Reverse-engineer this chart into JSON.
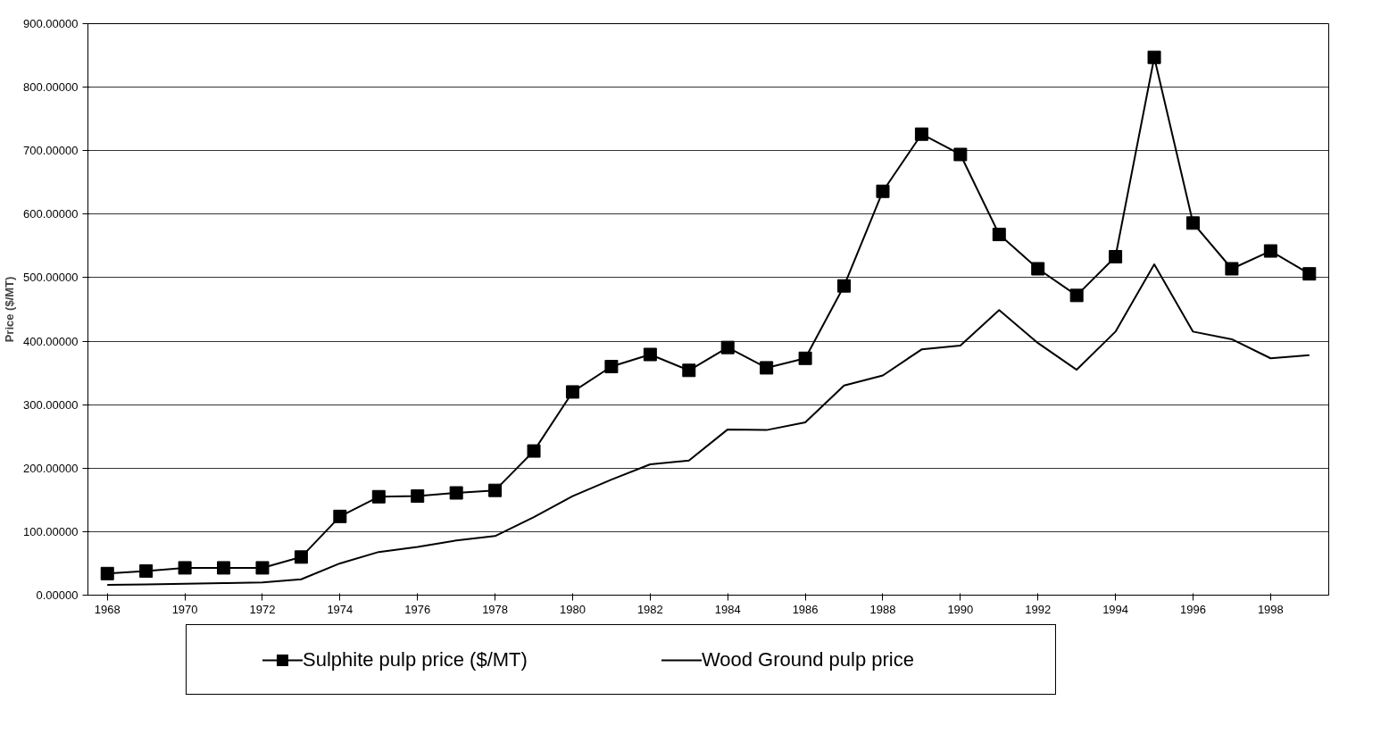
{
  "chart_data": {
    "type": "line",
    "ylabel": "Price ($/MT)",
    "x": [
      1968,
      1969,
      1970,
      1971,
      1972,
      1973,
      1974,
      1975,
      1976,
      1977,
      1978,
      1979,
      1980,
      1981,
      1982,
      1983,
      1984,
      1985,
      1986,
      1987,
      1988,
      1989,
      1990,
      1991,
      1992,
      1993,
      1994,
      1995,
      1996,
      1997,
      1998,
      1999
    ],
    "series": [
      {
        "name": "Sulphite pulp price ($/MT)",
        "color": "#000000",
        "marker": "square",
        "values": [
          34,
          38,
          43,
          43,
          43,
          60,
          124,
          155,
          156,
          161,
          165,
          227,
          320,
          360,
          379,
          354,
          390,
          358,
          373,
          487,
          636,
          726,
          694,
          568,
          514,
          472,
          533,
          847,
          586,
          514,
          542,
          506
        ]
      },
      {
        "name": "Wood Ground pulp price",
        "color": "#000000",
        "marker": "none",
        "values": [
          16,
          17,
          18,
          19,
          20,
          25,
          50,
          68,
          76,
          86,
          93,
          123,
          156,
          182,
          206,
          212,
          261,
          260,
          272,
          330,
          346,
          387,
          393,
          449,
          397,
          355,
          415,
          521,
          415,
          403,
          373,
          378
        ]
      }
    ],
    "xlim": [
      1967.5,
      1999.5
    ],
    "xticks": [
      1968,
      1970,
      1972,
      1974,
      1976,
      1978,
      1980,
      1982,
      1984,
      1986,
      1988,
      1990,
      1992,
      1994,
      1996,
      1998
    ],
    "ylim": [
      0,
      900
    ],
    "yticks": [
      {
        "value": 0,
        "label": "0.00000"
      },
      {
        "value": 100,
        "label": "100.00000"
      },
      {
        "value": 200,
        "label": "200.00000"
      },
      {
        "value": 300,
        "label": "300.00000"
      },
      {
        "value": 400,
        "label": "400.00000"
      },
      {
        "value": 500,
        "label": "500.00000"
      },
      {
        "value": 600,
        "label": "600.00000"
      },
      {
        "value": 700,
        "label": "700.00000"
      },
      {
        "value": 800,
        "label": "800.00000"
      },
      {
        "value": 900,
        "label": "900.00000"
      }
    ],
    "grid": "y",
    "legend": "bottom",
    "line_style": "solid"
  }
}
